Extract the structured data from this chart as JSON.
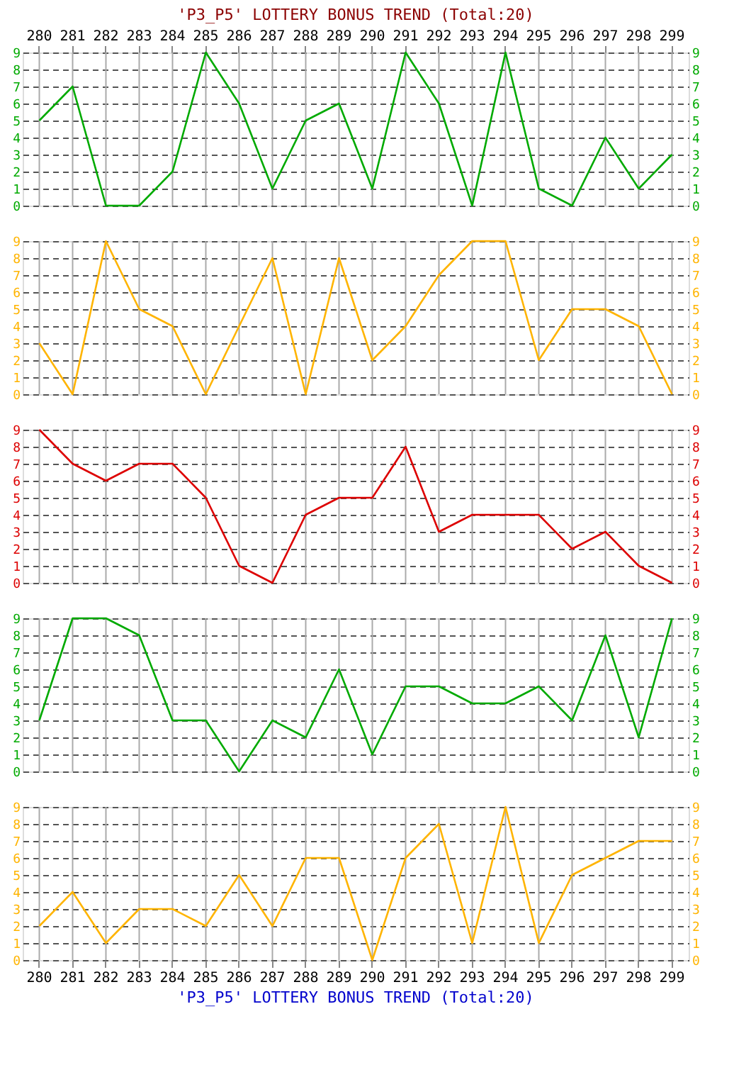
{
  "chart_data": [
    {
      "type": "line",
      "title": "'P3_P5' LOTTERY BONUS TREND (Total:20)",
      "categories": [
        "280",
        "281",
        "282",
        "283",
        "284",
        "285",
        "286",
        "287",
        "288",
        "289",
        "290",
        "291",
        "292",
        "293",
        "294",
        "295",
        "296",
        "297",
        "298",
        "299"
      ],
      "series": [
        {
          "color": "#00aa00",
          "values": [
            5,
            7,
            0,
            0,
            2,
            9,
            6,
            1,
            5,
            6,
            1,
            9,
            6,
            0,
            9,
            1,
            0,
            4,
            1,
            3
          ]
        }
      ],
      "ylim": [
        0,
        9
      ],
      "yticks": [
        0,
        1,
        2,
        3,
        4,
        5,
        6,
        7,
        8,
        9
      ],
      "y2lim": [
        0,
        9
      ],
      "y2ticks": [
        0,
        1,
        2,
        3,
        4,
        5,
        6,
        7,
        8,
        9
      ],
      "grid": true,
      "marker": "none"
    },
    {
      "type": "line",
      "categories": [
        "280",
        "281",
        "282",
        "283",
        "284",
        "285",
        "286",
        "287",
        "288",
        "289",
        "290",
        "291",
        "292",
        "293",
        "294",
        "295",
        "296",
        "297",
        "298",
        "299"
      ],
      "series": [
        {
          "color": "#ffb400",
          "values": [
            3,
            0,
            9,
            5,
            4,
            0,
            4,
            8,
            0,
            8,
            2,
            4,
            7,
            9,
            9,
            2,
            5,
            5,
            4,
            0
          ]
        }
      ],
      "ylim": [
        0,
        9
      ],
      "yticks": [
        0,
        1,
        2,
        3,
        4,
        5,
        6,
        7,
        8,
        9
      ],
      "y2lim": [
        0,
        9
      ],
      "y2ticks": [
        0,
        1,
        2,
        3,
        4,
        5,
        6,
        7,
        8,
        9
      ],
      "grid": true,
      "marker": "none",
      "tick_labels": "y"
    },
    {
      "type": "line",
      "categories": [
        "280",
        "281",
        "282",
        "283",
        "284",
        "285",
        "286",
        "287",
        "288",
        "289",
        "290",
        "291",
        "292",
        "293",
        "294",
        "295",
        "296",
        "297",
        "298",
        "299"
      ],
      "series": [
        {
          "color": "#dd0000",
          "values": [
            9,
            7,
            6,
            7,
            7,
            5,
            1,
            0,
            4,
            5,
            5,
            8,
            3,
            4,
            4,
            4,
            2,
            3,
            1,
            0
          ]
        }
      ],
      "ylim": [
        0,
        9
      ],
      "yticks": [
        0,
        1,
        2,
        3,
        4,
        5,
        6,
        7,
        8,
        9
      ],
      "y2lim": [
        0,
        9
      ],
      "y2ticks": [
        0,
        1,
        2,
        3,
        4,
        5,
        6,
        7,
        8,
        9
      ],
      "grid": true,
      "marker": "none",
      "tick_labels": "y"
    },
    {
      "type": "line",
      "categories": [
        "280",
        "281",
        "282",
        "283",
        "284",
        "285",
        "286",
        "287",
        "288",
        "289",
        "290",
        "291",
        "292",
        "293",
        "294",
        "295",
        "296",
        "297",
        "298",
        "299"
      ],
      "series": [
        {
          "color": "#00aa00",
          "values": [
            3,
            9,
            9,
            8,
            3,
            3,
            0,
            3,
            2,
            6,
            1,
            5,
            5,
            4,
            4,
            5,
            3,
            8,
            2,
            9
          ]
        }
      ],
      "ylim": [
        0,
        9
      ],
      "yticks": [
        0,
        1,
        2,
        3,
        4,
        5,
        6,
        7,
        8,
        9
      ],
      "y2lim": [
        0,
        9
      ],
      "y2ticks": [
        0,
        1,
        2,
        3,
        4,
        5,
        6,
        7,
        8,
        9
      ],
      "grid": true,
      "marker": "none",
      "tick_labels": "y"
    },
    {
      "type": "line",
      "annotations": [
        "'P3_P5' LOTTERY BONUS TREND (Total:20)"
      ],
      "categories": [
        "280",
        "281",
        "282",
        "283",
        "284",
        "285",
        "286",
        "287",
        "288",
        "289",
        "290",
        "291",
        "292",
        "293",
        "294",
        "295",
        "296",
        "297",
        "298",
        "299"
      ],
      "series": [
        {
          "color": "#ffb400",
          "values": [
            2,
            4,
            1,
            3,
            3,
            2,
            5,
            2,
            6,
            6,
            0,
            6,
            8,
            1,
            9,
            1,
            5,
            6,
            7,
            7
          ]
        }
      ],
      "ylim": [
        0,
        9
      ],
      "yticks": [
        0,
        1,
        2,
        3,
        4,
        5,
        6,
        7,
        8,
        9
      ],
      "y2lim": [
        0,
        9
      ],
      "y2ticks": [
        0,
        1,
        2,
        3,
        4,
        5,
        6,
        7,
        8,
        9
      ],
      "grid": true,
      "marker": "none"
    }
  ]
}
